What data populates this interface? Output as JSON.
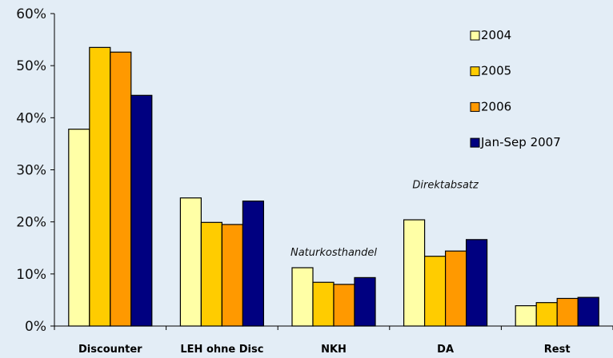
{
  "chart_data": {
    "type": "bar",
    "categories": [
      "Discounter",
      "LEH ohne Disc",
      "NKH",
      "DA",
      "Rest"
    ],
    "series": [
      {
        "name": "2004",
        "values": [
          37.8,
          24.6,
          11.2,
          20.4,
          3.9
        ],
        "color": "#ffffa6"
      },
      {
        "name": "2005",
        "values": [
          53.5,
          19.9,
          8.4,
          13.4,
          4.5
        ],
        "color": "#ffcc00"
      },
      {
        "name": "2006",
        "values": [
          52.6,
          19.5,
          8.0,
          14.4,
          5.3
        ],
        "color": "#ff9900"
      },
      {
        "name": "Jan-Sep 2007",
        "values": [
          44.3,
          24.0,
          9.3,
          16.6,
          5.5
        ],
        "color": "#000080"
      }
    ],
    "yticks": [
      "0%",
      "10%",
      "20%",
      "30%",
      "40%",
      "50%",
      "60%"
    ],
    "ylim": [
      0,
      60
    ],
    "grid": false,
    "legend_position": "top-right",
    "annotations": [
      {
        "text": "Naturkosthandel",
        "category": "NKH",
        "value": 13.5
      },
      {
        "text": "Direktabsatz",
        "category": "DA",
        "value": 26.5
      }
    ]
  }
}
